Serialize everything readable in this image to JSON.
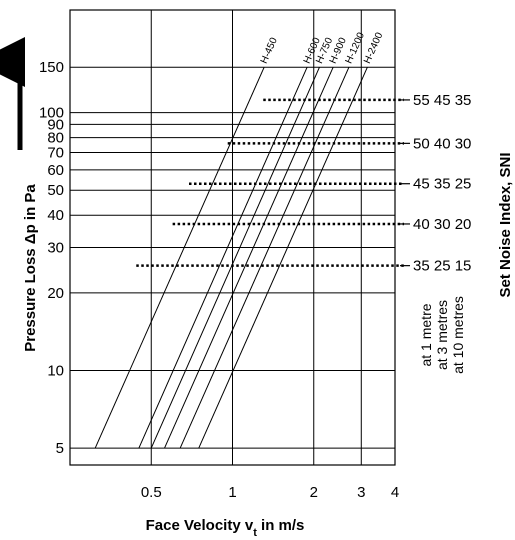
{
  "chart_data": {
    "type": "line",
    "x_scale": "log",
    "y_scale": "log",
    "xlim": [
      0.25,
      4
    ],
    "ylim": [
      4.3,
      250
    ],
    "xlabel_text": "Face Velocity v",
    "xlabel_sub": "t",
    "xlabel_unit": " in m/s",
    "ylabel": "Pressure Loss Δp in Pa",
    "right_label": "Set Noise Index, SNI",
    "x_ticks": [
      0.5,
      1,
      2,
      3,
      4
    ],
    "x_tick_labels": [
      "0.5",
      "1",
      "2",
      "3",
      "4"
    ],
    "y_ticks": [
      5,
      10,
      20,
      30,
      40,
      50,
      60,
      70,
      80,
      90,
      100,
      150
    ],
    "y_tick_labels": [
      "5",
      "10",
      "20",
      "30",
      "40",
      "50",
      "60",
      "70",
      "80",
      "90",
      "100",
      "150"
    ],
    "series": [
      {
        "name": "H-450",
        "x": [
          0.31,
          1.31
        ],
        "y": [
          5,
          150
        ]
      },
      {
        "name": "H-600",
        "x": [
          0.45,
          1.89
        ],
        "y": [
          5,
          150
        ]
      },
      {
        "name": "H-750",
        "x": [
          0.5,
          2.1
        ],
        "y": [
          5,
          150
        ]
      },
      {
        "name": "H-900",
        "x": [
          0.56,
          2.36
        ],
        "y": [
          5,
          150
        ]
      },
      {
        "name": "H-1200",
        "x": [
          0.64,
          2.7
        ],
        "y": [
          5,
          150
        ]
      },
      {
        "name": "H-2400",
        "x": [
          0.75,
          3.16
        ],
        "y": [
          5,
          150
        ]
      }
    ],
    "noise_levels": [
      {
        "y": 112,
        "x_start": 1.3,
        "label": "55 45 35"
      },
      {
        "y": 76,
        "x_start": 0.96,
        "label": "50 40 30"
      },
      {
        "y": 53,
        "x_start": 0.69,
        "label": "45 35 25"
      },
      {
        "y": 37,
        "x_start": 0.6,
        "label": "40 30 20"
      },
      {
        "y": 25.5,
        "x_start": 0.44,
        "label": "35 25 15"
      }
    ],
    "distance_labels": [
      "at 1 metre",
      "at 3 metres",
      "at 10 metres"
    ],
    "grid": true
  }
}
